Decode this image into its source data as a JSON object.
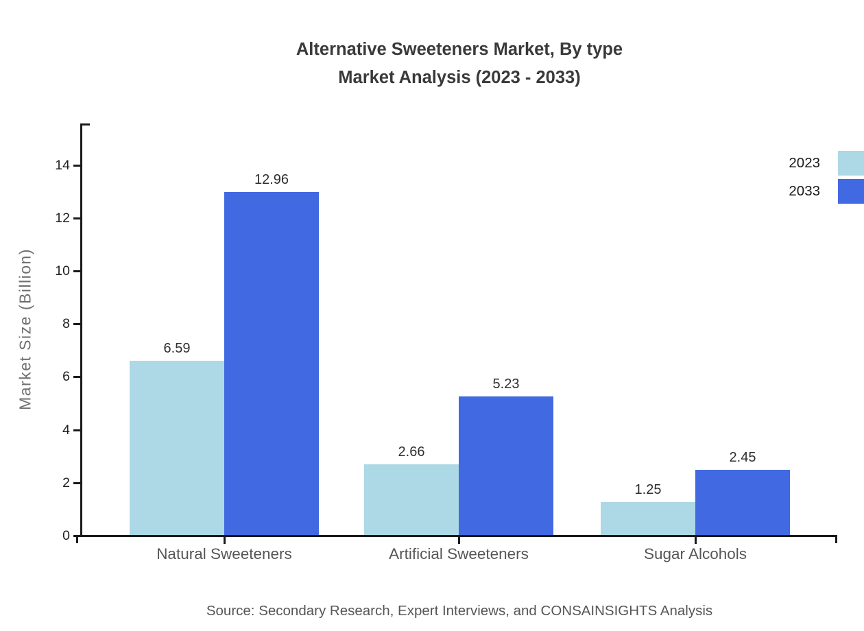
{
  "title": {
    "line1": "Alternative Sweeteners Market, By type",
    "line2": "Market Analysis (2023 - 2033)"
  },
  "source": "Source: Secondary Research, Expert Interviews, and CONSAINSIGHTS Analysis",
  "chart_data": {
    "type": "bar",
    "title": "Alternative Sweeteners Market, By type — Market Analysis (2023 - 2033)",
    "xlabel": "",
    "ylabel": "Market Size (Billion)",
    "categories": [
      "Natural Sweeteners",
      "Artificial Sweeteners",
      "Sugar Alcohols"
    ],
    "series": [
      {
        "name": "2023",
        "color": "#ADD8E6",
        "values": [
          6.59,
          2.66,
          1.25
        ]
      },
      {
        "name": "2033",
        "color": "#4169E1",
        "values": [
          12.96,
          5.23,
          2.45
        ]
      }
    ],
    "ylim": [
      0,
      15.5
    ],
    "yticks": [
      0,
      2,
      4,
      6,
      8,
      10,
      12,
      14
    ],
    "grid": false,
    "legend_position": "top-right",
    "value_labels_shown": true,
    "axis_color": "#1a1a1a",
    "bar_value_label_values": [
      "6.59",
      "12.96",
      "2.66",
      "5.23",
      "1.25",
      "2.45"
    ]
  }
}
